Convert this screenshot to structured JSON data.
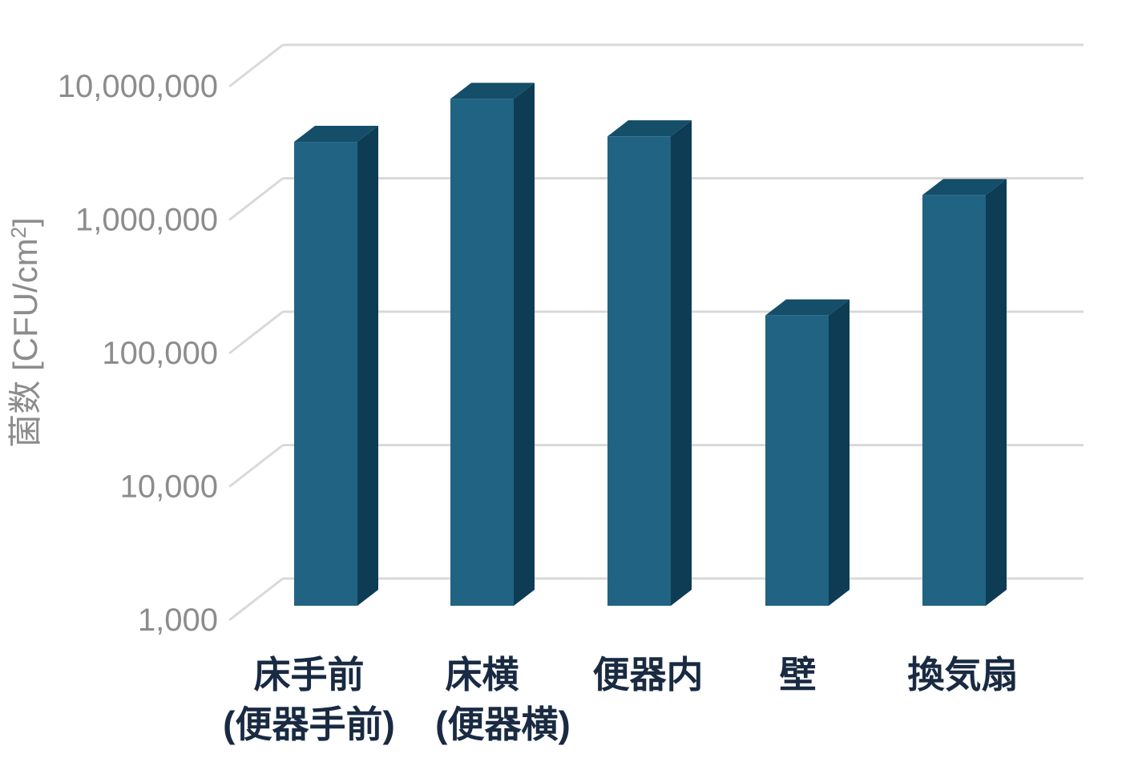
{
  "chart_data": {
    "type": "bar",
    "style": "3d-column",
    "scale": "log",
    "title": "",
    "ylabel": "菌数 [CFU/cm2]",
    "ylabel_prefix": "菌数 [CFU/cm",
    "ylabel_sup": "2",
    "ylabel_suffix": "]",
    "yticks": [
      "10,000,000",
      "1,000,000",
      "100,000",
      "10,000",
      "1,000"
    ],
    "ylim": [
      1000,
      10000000
    ],
    "grid": true,
    "legend": false,
    "categories": [
      {
        "line1": "床手前",
        "line2": "(便器手前)"
      },
      {
        "line1": "床横",
        "line2": "(便器横)"
      },
      {
        "line1": "便器内",
        "line2": ""
      },
      {
        "line1": "壁",
        "line2": ""
      },
      {
        "line1": "換気扇",
        "line2": ""
      }
    ],
    "values": [
      3000000,
      6300000,
      3300000,
      150000,
      1200000
    ]
  },
  "colors": {
    "background": "#ffffff",
    "bar_front": "#216382",
    "bar_top": "#144E68",
    "bar_side": "#0D3C54",
    "grid": "#d9d9d9",
    "axis_text": "#8c8c8c",
    "category_text": "#192a42"
  }
}
